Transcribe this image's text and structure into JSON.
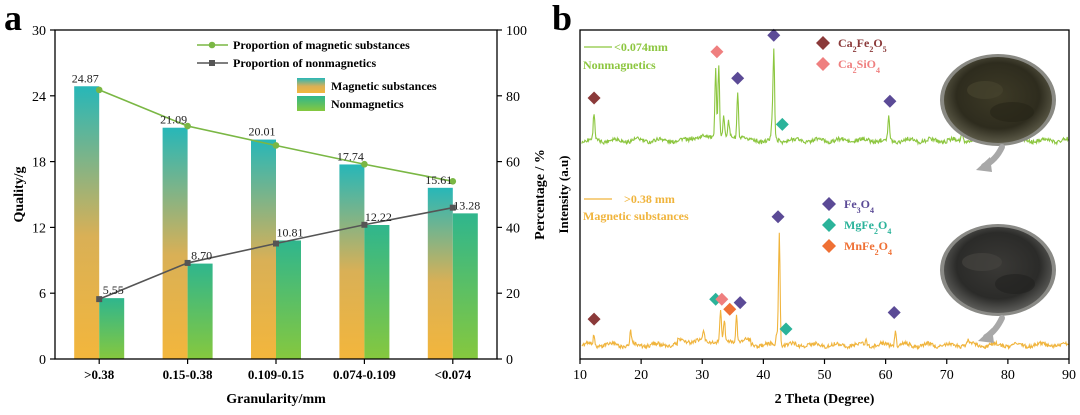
{
  "panel_a_letter": "a",
  "panel_b_letter": "b",
  "chart_data": [
    {
      "type": "bar",
      "title": "",
      "xlabel": "Granularity/mm",
      "ylabel": "Quality/g",
      "y2label": "Percentage / %",
      "ylim": [
        0,
        30
      ],
      "y2lim": [
        0,
        100
      ],
      "yticks": [
        0,
        6,
        12,
        18,
        24,
        30
      ],
      "y2ticks": [
        0,
        20,
        40,
        60,
        80,
        100
      ],
      "categories": [
        ">0.38",
        "0.15-0.38",
        "0.109-0.15",
        "0.074-0.109",
        "<0.074"
      ],
      "series": [
        {
          "name": "Magnetic substances",
          "kind": "bar",
          "axis": "left",
          "values": [
            24.87,
            21.09,
            20.01,
            17.74,
            15.61
          ],
          "labels": [
            "24.87",
            "21.09",
            "20.01",
            "17.74",
            "15.61"
          ],
          "color_top": "#27b7b8",
          "color_bottom": "#f3b63c"
        },
        {
          "name": "Nonmagnetics",
          "kind": "bar",
          "axis": "left",
          "values": [
            5.55,
            8.7,
            10.81,
            12.22,
            13.28
          ],
          "labels": [
            "5.55",
            "8.70",
            "10.81",
            "12.22",
            "13.28"
          ],
          "color_top": "#2fb68d",
          "color_bottom": "#86c83e"
        },
        {
          "name": "Proportion of magnetic substances",
          "kind": "line",
          "axis": "right",
          "values": [
            81.8,
            70.8,
            64.9,
            59.2,
            54.0
          ],
          "color": "#7ab744"
        },
        {
          "name": "Proportion of nonmagnetics",
          "kind": "line",
          "axis": "right",
          "values": [
            18.2,
            29.2,
            35.1,
            40.8,
            46.0
          ],
          "color": "#555555"
        }
      ],
      "legend": [
        {
          "label": "Proportion of magnetic substances",
          "kind": "line",
          "color": "#7ab744"
        },
        {
          "label": "Proportion of nonmagnetics",
          "kind": "line",
          "color": "#555555"
        },
        {
          "label": "Magnetic substances",
          "kind": "bar"
        },
        {
          "label": "Nonmagnetics",
          "kind": "bar"
        }
      ],
      "legend_position": "top-right"
    },
    {
      "type": "line",
      "title": "",
      "xlabel": "2 Theta (Degree)",
      "ylabel": "Intensity (a.u)",
      "xlim": [
        10,
        90
      ],
      "xticks": [
        10,
        20,
        30,
        40,
        50,
        60,
        70,
        80,
        90
      ],
      "series": [
        {
          "name": "<0.074mm Nonmagnetics",
          "label_line1": "<0.074mm",
          "label_line2": "Nonmagnetics",
          "color": "#8cc63f",
          "baseline": 0.62,
          "peaks": [
            {
              "x": 12.3,
              "h": 0.08
            },
            {
              "x": 32.2,
              "h": 0.22
            },
            {
              "x": 32.7,
              "h": 0.22
            },
            {
              "x": 33.5,
              "h": 0.06
            },
            {
              "x": 34.3,
              "h": 0.05
            },
            {
              "x": 35.8,
              "h": 0.14
            },
            {
              "x": 41.4,
              "h": 0.05
            },
            {
              "x": 41.7,
              "h": 0.27
            },
            {
              "x": 60.5,
              "h": 0.07
            },
            {
              "x": 72.5,
              "h": 0.03
            },
            {
              "x": 76.0,
              "h": 0.02
            }
          ]
        },
        {
          "name": ">0.38 mm Magnetic substances",
          "label_line1": ">0.38 mm",
          "label_line2": "Magnetic substances",
          "color": "#f0b43c",
          "baseline": 0.0,
          "peaks": [
            {
              "x": 12.3,
              "h": 0.03
            },
            {
              "x": 18.3,
              "h": 0.04
            },
            {
              "x": 30.2,
              "h": 0.03
            },
            {
              "x": 33.0,
              "h": 0.09
            },
            {
              "x": 33.6,
              "h": 0.06
            },
            {
              "x": 35.6,
              "h": 0.08
            },
            {
              "x": 42.2,
              "h": 0.04
            },
            {
              "x": 42.6,
              "h": 0.34
            },
            {
              "x": 56.8,
              "h": 0.02
            },
            {
              "x": 61.6,
              "h": 0.05
            },
            {
              "x": 73.5,
              "h": 0.02
            }
          ]
        }
      ],
      "phase_legend_upper": [
        {
          "formula": "Ca₂Fe₂O₅",
          "color": "#8b3a3a"
        },
        {
          "formula": "Ca₂SiO₄",
          "color": "#ef7f7f"
        }
      ],
      "phase_legend_lower": [
        {
          "formula": "Fe₃O₄",
          "color": "#5b4a96"
        },
        {
          "formula": "MgFe₂O₄",
          "color": "#2bb39a"
        },
        {
          "formula": "MnFe₂O₄",
          "color": "#ef7034"
        }
      ],
      "phase_markers": [
        {
          "x": 12.3,
          "color": "#8b3a3a",
          "series": 0
        },
        {
          "x": 32.4,
          "color": "#ef7f7f",
          "series": 0
        },
        {
          "x": 35.8,
          "color": "#5b4a96",
          "series": 0
        },
        {
          "x": 41.7,
          "color": "#5b4a96",
          "series": 0
        },
        {
          "x": 43.1,
          "color": "#2bb39a",
          "series": 0
        },
        {
          "x": 60.7,
          "color": "#5b4a96",
          "series": 0
        },
        {
          "x": 12.3,
          "color": "#8b3a3a",
          "series": 1
        },
        {
          "x": 32.2,
          "color": "#2bb39a",
          "series": 1
        },
        {
          "x": 33.2,
          "color": "#ef7f7f",
          "series": 1
        },
        {
          "x": 34.5,
          "color": "#ef7034",
          "series": 1
        },
        {
          "x": 36.2,
          "color": "#5b4a96",
          "series": 1
        },
        {
          "x": 42.4,
          "color": "#5b4a96",
          "series": 1
        },
        {
          "x": 43.7,
          "color": "#2bb39a",
          "series": 1
        },
        {
          "x": 61.4,
          "color": "#5b4a96",
          "series": 1
        }
      ]
    }
  ]
}
